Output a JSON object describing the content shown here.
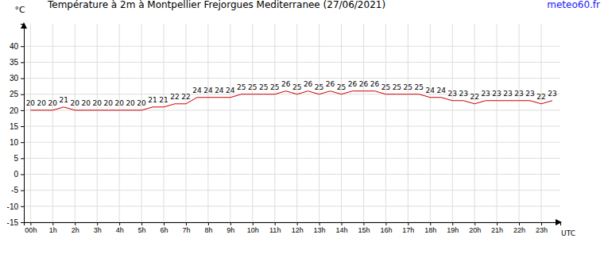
{
  "chart_data": {
    "type": "line",
    "title": "Température à 2m à Montpellier Frejorgues Mediterranee (27/06/2021)",
    "source": "meteo60.fr",
    "y_label": "°C",
    "x_label": "UTC",
    "x": [
      0,
      0.5,
      1,
      1.5,
      2,
      2.5,
      3,
      3.5,
      4,
      4.5,
      5,
      5.5,
      6,
      6.5,
      7,
      7.5,
      8,
      8.5,
      9,
      9.5,
      10,
      10.5,
      11,
      11.5,
      12,
      12.5,
      13,
      13.5,
      14,
      14.5,
      15,
      15.5,
      16,
      16.5,
      17,
      17.5,
      18,
      18.5,
      19,
      19.5,
      20,
      20.5,
      21,
      21.5,
      22,
      22.5,
      23,
      23.5
    ],
    "values": [
      20,
      20,
      20,
      21,
      20,
      20,
      20,
      20,
      20,
      20,
      20,
      21,
      21,
      22,
      22,
      24,
      24,
      24,
      24,
      25,
      25,
      25,
      25,
      26,
      25,
      26,
      25,
      26,
      25,
      26,
      26,
      26,
      25,
      25,
      25,
      25,
      24,
      24,
      23,
      23,
      22,
      23,
      23,
      23,
      23,
      23,
      22,
      23
    ],
    "color": "#cc0000",
    "data_labels": true,
    "grid": true,
    "xlim": [
      -0.3,
      23.86
    ],
    "xticks": [
      {
        "value": 0,
        "label": "00h"
      },
      {
        "value": 1,
        "label": "1h"
      },
      {
        "value": 2,
        "label": "2h"
      },
      {
        "value": 3,
        "label": "3h"
      },
      {
        "value": 4,
        "label": "4h"
      },
      {
        "value": 5,
        "label": "5h"
      },
      {
        "value": 6,
        "label": "6h"
      },
      {
        "value": 7,
        "label": "7h"
      },
      {
        "value": 8,
        "label": "8h"
      },
      {
        "value": 9,
        "label": "9h"
      },
      {
        "value": 10,
        "label": "10h"
      },
      {
        "value": 11,
        "label": "11h"
      },
      {
        "value": 12,
        "label": "12h"
      },
      {
        "value": 13,
        "label": "13h"
      },
      {
        "value": 14,
        "label": "14h"
      },
      {
        "value": 15,
        "label": "15h"
      },
      {
        "value": 16,
        "label": "16h"
      },
      {
        "value": 17,
        "label": "17h"
      },
      {
        "value": 18,
        "label": "18h"
      },
      {
        "value": 19,
        "label": "19h"
      },
      {
        "value": 20,
        "label": "20h"
      },
      {
        "value": 21,
        "label": "21h"
      },
      {
        "value": 22,
        "label": "22h"
      },
      {
        "value": 23,
        "label": "23h"
      }
    ],
    "ylim": [
      -15,
      47
    ],
    "yticks": [
      -15,
      -10,
      -5,
      0,
      5,
      10,
      15,
      20,
      25,
      30,
      35,
      40
    ]
  }
}
